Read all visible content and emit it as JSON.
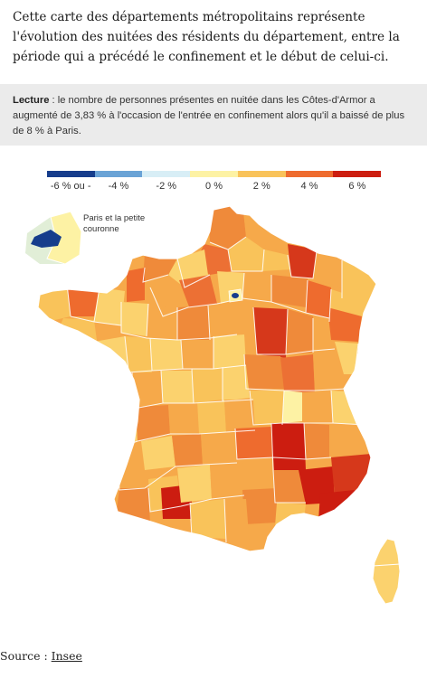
{
  "intro_text": "Cette carte des départements métropolitains représente l'évolution des nuitées des résidents du département, entre la période qui a précédé le confinement et le début de celui-ci.",
  "reading": {
    "label": "Lecture",
    "text": " : le nombre de personnes présentes en nuitée dans les Côtes-d'Armor a augmenté de 3,83 % à l'occasion de l'entrée en confinement alors qu'il a baissé de plus de 8 % à Paris."
  },
  "legend": {
    "colors": [
      "#163d8c",
      "#6aa3d6",
      "#d8eef6",
      "#fdf2a4",
      "#f9c35a",
      "#ee6b2e",
      "#cc1d10"
    ],
    "labels": [
      "-6 % ou -",
      "-4 %",
      "-2 %",
      "0 %",
      "2 %",
      "4 %",
      "6 %"
    ]
  },
  "inset_label": "Paris et la petite couronne",
  "source": {
    "prefix": "Source : ",
    "link_text": "Insee"
  },
  "colors": {
    "paris": "#163d8c",
    "inset_suburb": "#fdf2a4",
    "inset_bg": "#e1eed7"
  }
}
